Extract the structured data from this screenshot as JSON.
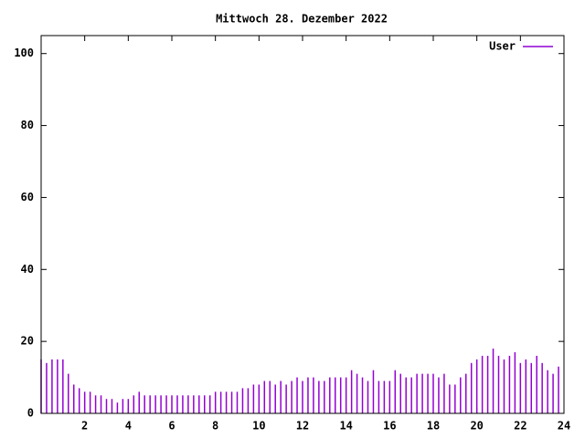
{
  "chart_data": {
    "type": "impulses",
    "title": "Mittwoch 28. Dezember 2022",
    "x": [
      0,
      0.25,
      0.5,
      0.75,
      1,
      1.25,
      1.5,
      1.75,
      2,
      2.25,
      2.5,
      2.75,
      3,
      3.25,
      3.5,
      3.75,
      4,
      4.25,
      4.5,
      4.75,
      5,
      5.25,
      5.5,
      5.75,
      6,
      6.25,
      6.5,
      6.75,
      7,
      7.25,
      7.5,
      7.75,
      8,
      8.25,
      8.5,
      8.75,
      9,
      9.25,
      9.5,
      9.75,
      10,
      10.25,
      10.5,
      10.75,
      11,
      11.25,
      11.5,
      11.75,
      12,
      12.25,
      12.5,
      12.75,
      13,
      13.25,
      13.5,
      13.75,
      14,
      14.25,
      14.5,
      14.75,
      15,
      15.25,
      15.5,
      15.75,
      16,
      16.25,
      16.5,
      16.75,
      17,
      17.25,
      17.5,
      17.75,
      18,
      18.25,
      18.5,
      18.75,
      19,
      19.25,
      19.5,
      19.75,
      20,
      20.25,
      20.5,
      20.75,
      21,
      21.25,
      21.5,
      21.75,
      22,
      22.25,
      22.5,
      22.75,
      23,
      23.25,
      23.5,
      23.75
    ],
    "series": [
      {
        "name": "User",
        "color": "#9400d3",
        "values": [
          15,
          14,
          15,
          15,
          15,
          11,
          8,
          7,
          6,
          6,
          5,
          5,
          4,
          4,
          3,
          4,
          4,
          5,
          6,
          5,
          5,
          5,
          5,
          5,
          5,
          5,
          5,
          5,
          5,
          5,
          5,
          5,
          6,
          6,
          6,
          6,
          6,
          7,
          7,
          8,
          8,
          9,
          9,
          8,
          9,
          8,
          9,
          10,
          9,
          10,
          10,
          9,
          9,
          10,
          10,
          10,
          10,
          12,
          11,
          10,
          9,
          12,
          9,
          9,
          9,
          12,
          11,
          10,
          10,
          11,
          11,
          11,
          11,
          10,
          11,
          8,
          8,
          10,
          11,
          14,
          15,
          16,
          16,
          18,
          16,
          15,
          16,
          17,
          14,
          15,
          14,
          16,
          14,
          12,
          11,
          13
        ]
      }
    ],
    "xlim": [
      0,
      24
    ],
    "ylim": [
      0,
      105
    ],
    "xticks": [
      2,
      4,
      6,
      8,
      10,
      12,
      14,
      16,
      18,
      20,
      22,
      24
    ],
    "yticks": [
      0,
      20,
      40,
      60,
      80,
      100
    ],
    "legend": "top-right"
  }
}
